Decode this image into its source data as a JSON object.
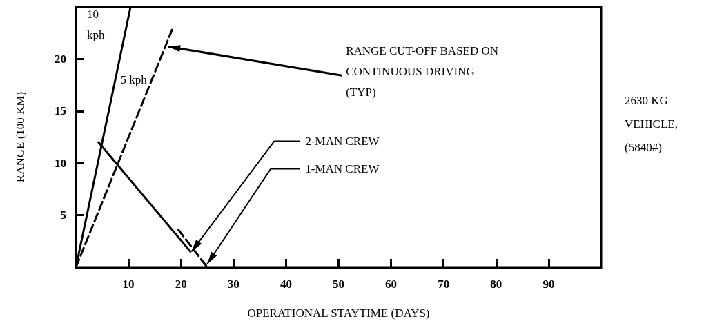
{
  "chart_data": {
    "type": "line",
    "xlabel": "OPERATIONAL STAYTIME (DAYS)",
    "ylabel": "RANGE (100 KM)",
    "xlim": [
      0,
      100
    ],
    "xticks": [
      10,
      20,
      30,
      40,
      50,
      60,
      70,
      80,
      90
    ],
    "ylim": [
      0,
      25
    ],
    "yticks": [
      5,
      10,
      15,
      20
    ],
    "grid": false,
    "marker": "none",
    "series": [
      {
        "color": "#000000",
        "x": [
          0,
          5,
          10.4
        ],
        "values": [
          0,
          12,
          25
        ],
        "line_style": "solid"
      },
      {
        "color": "#000000",
        "x": [
          0,
          18.3
        ],
        "values": [
          0,
          22.8
        ],
        "line_style": "dashed"
      },
      {
        "color": "#000000",
        "x": [
          4.3,
          21.8
        ],
        "values": [
          12,
          1.5
        ],
        "line_style": "solid"
      },
      {
        "color": "#000000",
        "x": [
          19.5,
          25
        ],
        "values": [
          3.6,
          0
        ],
        "line_style": "dashed"
      }
    ],
    "annotations": [
      {
        "text": "10 kph",
        "x": 8,
        "y": 19.2
      },
      {
        "text": "5 kph",
        "x": 14,
        "y": 16.8
      },
      {
        "text": "RANGE CUT-OFF BASED ON CONTINUOUS DRIVING (TYP)",
        "x": 17.5,
        "y": 21.2
      },
      {
        "text": "2-MAN CREW",
        "x": 22,
        "y": 1.5
      },
      {
        "text": "1-MAN CREW",
        "x": 25,
        "y": 0.3
      },
      "2630 KG VEHICLE, (5840#)"
    ]
  }
}
